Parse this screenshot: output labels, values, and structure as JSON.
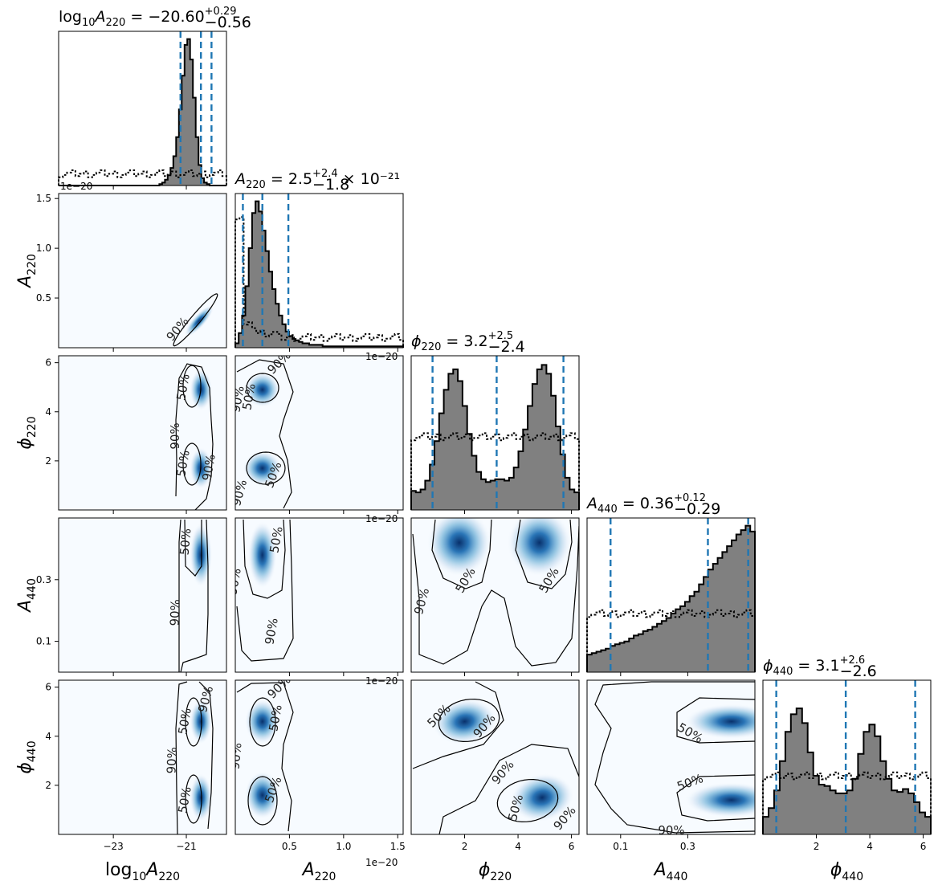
{
  "chart_data": {
    "type": "corner",
    "parameters": [
      {
        "key": "log10A220",
        "label_main": "log",
        "label_sub1": "10",
        "label_var": "A",
        "label_sub2": "220",
        "range": [
          -24.5,
          -19.9
        ],
        "ticks": [
          -23,
          -21
        ],
        "tick_labels": [
          "−23",
          "−21"
        ],
        "offset": ""
      },
      {
        "key": "A220",
        "label_var": "A",
        "label_sub2": "220",
        "range": [
          0.0,
          1.55
        ],
        "ticks": [
          0.5,
          1.0,
          1.5
        ],
        "tick_labels": [
          "0.5",
          "1.0",
          "1.5"
        ],
        "offset": "1e−20"
      },
      {
        "key": "phi220",
        "label_var": "ϕ",
        "label_sub2": "220",
        "range": [
          0.0,
          6.283
        ],
        "ticks": [
          2,
          4,
          6
        ],
        "tick_labels": [
          "2",
          "4",
          "6"
        ],
        "offset": ""
      },
      {
        "key": "A440",
        "label_var": "A",
        "label_sub2": "440",
        "range": [
          0.0,
          0.5
        ],
        "ticks": [
          0.1,
          0.3
        ],
        "tick_labels": [
          "0.1",
          "0.3"
        ],
        "offset": ""
      },
      {
        "key": "phi440",
        "label_var": "ϕ",
        "label_sub2": "440",
        "range": [
          0.0,
          6.283
        ],
        "ticks": [
          2,
          4,
          6
        ],
        "tick_labels": [
          "2",
          "4",
          "6"
        ],
        "offset": ""
      }
    ],
    "titles": [
      {
        "lhs": "log",
        "lhs_sub": "10",
        "var": "A",
        "var_sub": "220",
        "value": " = −20.60",
        "up": "+0.29",
        "down": "−0.56",
        "suffix": ""
      },
      {
        "lhs": "",
        "lhs_sub": "",
        "var": "A",
        "var_sub": "220",
        "value": " = 2.5",
        "up": "+2.4",
        "down": "−1.8",
        "suffix": " × 10⁻²¹"
      },
      {
        "lhs": "",
        "lhs_sub": "",
        "var": "ϕ",
        "var_sub": "220",
        "value": " = 3.2",
        "up": "+2.5",
        "down": "−2.4",
        "suffix": ""
      },
      {
        "lhs": "",
        "lhs_sub": "",
        "var": "A",
        "var_sub": "440",
        "value": " = 0.36",
        "up": "+0.12",
        "down": "−0.29",
        "suffix": ""
      },
      {
        "lhs": "",
        "lhs_sub": "",
        "var": "ϕ",
        "var_sub": "440",
        "value": " = 3.1",
        "up": "+2.6",
        "down": "−2.6",
        "suffix": ""
      }
    ],
    "quantiles": [
      [
        -21.16,
        -20.6,
        -20.31
      ],
      [
        0.07,
        0.25,
        0.49
      ],
      [
        0.8,
        3.2,
        5.7
      ],
      [
        0.07,
        0.36,
        0.48
      ],
      [
        0.5,
        3.1,
        5.7
      ]
    ],
    "posterior_hist": [
      [
        0,
        0,
        0,
        0,
        0,
        0,
        0,
        0,
        0,
        0,
        0,
        0,
        0,
        0,
        0,
        0,
        0,
        0,
        0,
        0,
        0,
        0,
        0,
        0,
        0,
        0,
        0,
        0,
        0,
        0,
        0,
        0,
        0,
        0,
        0,
        0,
        0.01,
        0.02,
        0.04,
        0.07,
        0.12,
        0.2,
        0.33,
        0.52,
        0.75,
        0.96,
        1.0,
        0.86,
        0.6,
        0.33,
        0.14,
        0.05,
        0.02,
        0.01,
        0,
        0,
        0,
        0,
        0,
        0
      ],
      [
        0.03,
        0.1,
        0.22,
        0.42,
        0.68,
        0.92,
        1.0,
        0.93,
        0.8,
        0.66,
        0.52,
        0.4,
        0.3,
        0.22,
        0.16,
        0.11,
        0.08,
        0.06,
        0.05,
        0.04,
        0.03,
        0.03,
        0.02,
        0.02,
        0.02,
        0.02,
        0.01,
        0.01,
        0.01,
        0.01,
        0.01,
        0.01,
        0.01,
        0.01,
        0.01,
        0.01,
        0.01,
        0.01,
        0.01,
        0.01,
        0.01,
        0.01,
        0.01,
        0.01,
        0.01,
        0.01,
        0.01,
        0.01,
        0.01,
        0.01
      ],
      [
        0.13,
        0.12,
        0.14,
        0.2,
        0.31,
        0.47,
        0.66,
        0.82,
        0.93,
        0.96,
        0.88,
        0.71,
        0.52,
        0.37,
        0.26,
        0.21,
        0.19,
        0.2,
        0.21,
        0.21,
        0.2,
        0.22,
        0.29,
        0.4,
        0.55,
        0.71,
        0.86,
        0.96,
        0.99,
        0.93,
        0.78,
        0.57,
        0.38,
        0.22,
        0.14,
        0.12
      ],
      [
        0.12,
        0.13,
        0.14,
        0.15,
        0.16,
        0.18,
        0.19,
        0.2,
        0.21,
        0.23,
        0.25,
        0.26,
        0.28,
        0.29,
        0.31,
        0.33,
        0.35,
        0.37,
        0.4,
        0.43,
        0.45,
        0.48,
        0.52,
        0.55,
        0.6,
        0.65,
        0.7,
        0.74,
        0.78,
        0.82,
        0.86,
        0.9,
        0.94,
        0.97,
        1.0,
        0.96
      ],
      [
        0.12,
        0.18,
        0.3,
        0.5,
        0.7,
        0.82,
        0.86,
        0.76,
        0.56,
        0.4,
        0.34,
        0.33,
        0.3,
        0.28,
        0.28,
        0.3,
        0.38,
        0.55,
        0.7,
        0.75,
        0.67,
        0.5,
        0.38,
        0.3,
        0.29,
        0.31,
        0.28,
        0.22,
        0.15,
        0.12
      ]
    ],
    "prior_level": [
      0.08,
      0.9,
      0.5,
      0.4,
      0.4
    ],
    "contour_levels": [
      "50%",
      "90%"
    ],
    "colormap": "Blues",
    "line_color": "#000000",
    "quantile_color": "#1f77b4",
    "hist_fill_color": "#808080"
  }
}
